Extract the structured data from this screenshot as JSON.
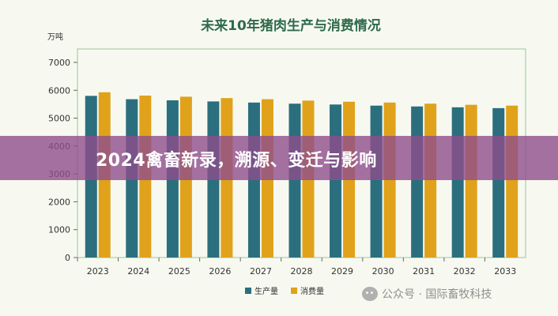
{
  "banner": {
    "headline": "2024禽畜新录，溯源、变迁与影响"
  },
  "watermark": {
    "text": "公众号 · 国际畜牧科技",
    "icon": "wechat-icon"
  },
  "colors": {
    "production": "#2b6f7e",
    "consumption": "#e0a21a",
    "title": "#2e6a4a",
    "banner": "#8e4e8c"
  },
  "chart_data": {
    "type": "bar",
    "title": "未来10年猪肉生产与消费情况",
    "ylabel": "万吨",
    "xlabel": "",
    "ylim": [
      0,
      7000
    ],
    "yticks": [
      0,
      1000,
      2000,
      3000,
      4000,
      5000,
      6000,
      7000
    ],
    "grid": false,
    "legend_position": "bottom-center",
    "categories": [
      "2023",
      "2024",
      "2025",
      "2026",
      "2027",
      "2028",
      "2029",
      "2030",
      "2031",
      "2032",
      "2033"
    ],
    "series": [
      {
        "name": "生产量",
        "color": "#2b6f7e",
        "values": [
          5800,
          5680,
          5640,
          5600,
          5560,
          5520,
          5490,
          5450,
          5420,
          5390,
          5360
        ]
      },
      {
        "name": "消费量",
        "color": "#e0a21a",
        "values": [
          5930,
          5810,
          5770,
          5720,
          5680,
          5630,
          5590,
          5560,
          5520,
          5480,
          5450
        ]
      }
    ]
  }
}
